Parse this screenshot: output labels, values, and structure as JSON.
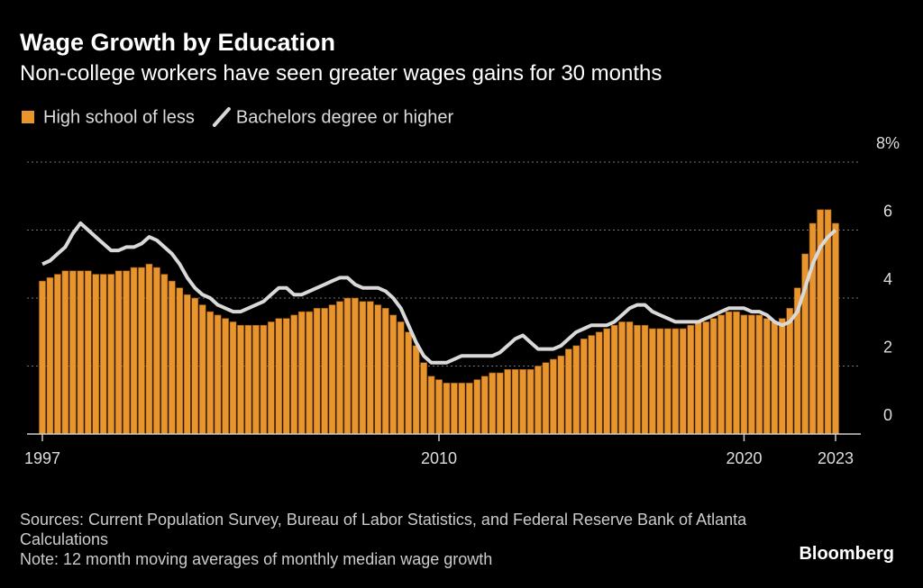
{
  "chart_data": {
    "type": "bar_line",
    "title": "Wage Growth by Education",
    "subtitle": "Non-college workers have seen greater wages gains for 30 months",
    "source": "Sources: Current Population Survey, Bureau of Labor Statistics, and Federal Reserve Bank of Atlanta Calculations",
    "note": "Note: 12 month moving averages of monthly median wage growth",
    "brand": "Bloomberg",
    "x": [
      1997,
      1997.25,
      1997.5,
      1997.75,
      1998,
      1998.25,
      1998.5,
      1998.75,
      1999,
      1999.25,
      1999.5,
      1999.75,
      2000,
      2000.25,
      2000.5,
      2000.75,
      2001,
      2001.25,
      2001.5,
      2001.75,
      2002,
      2002.25,
      2002.5,
      2002.75,
      2003,
      2003.25,
      2003.5,
      2003.75,
      2004,
      2004.25,
      2004.5,
      2004.75,
      2005,
      2005.25,
      2005.5,
      2005.75,
      2006,
      2006.25,
      2006.5,
      2006.75,
      2007,
      2007.25,
      2007.5,
      2007.75,
      2008,
      2008.25,
      2008.5,
      2008.75,
      2009,
      2009.25,
      2009.5,
      2009.75,
      2010,
      2010.25,
      2010.5,
      2010.75,
      2011,
      2011.25,
      2011.5,
      2011.75,
      2012,
      2012.25,
      2012.5,
      2012.75,
      2013,
      2013.25,
      2013.5,
      2013.75,
      2014,
      2014.25,
      2014.5,
      2014.75,
      2015,
      2015.25,
      2015.5,
      2015.75,
      2016,
      2016.25,
      2016.5,
      2016.75,
      2017,
      2017.25,
      2017.5,
      2017.75,
      2018,
      2018.25,
      2018.5,
      2018.75,
      2019,
      2019.25,
      2019.5,
      2019.75,
      2020,
      2020.25,
      2020.5,
      2020.75,
      2021,
      2021.25,
      2021.5,
      2021.75,
      2022,
      2022.25,
      2022.5,
      2022.75,
      2023
    ],
    "series": [
      {
        "name": "High school of less",
        "color": "#e8952e",
        "kind": "bar",
        "values": [
          4.5,
          4.6,
          4.7,
          4.8,
          4.8,
          4.8,
          4.8,
          4.7,
          4.7,
          4.7,
          4.8,
          4.8,
          4.9,
          4.9,
          5.0,
          4.9,
          4.7,
          4.5,
          4.3,
          4.1,
          4.0,
          3.8,
          3.6,
          3.5,
          3.4,
          3.3,
          3.2,
          3.2,
          3.2,
          3.2,
          3.3,
          3.4,
          3.4,
          3.5,
          3.6,
          3.6,
          3.7,
          3.7,
          3.8,
          3.9,
          4.0,
          4.0,
          3.9,
          3.9,
          3.8,
          3.7,
          3.5,
          3.3,
          3.0,
          2.6,
          2.1,
          1.7,
          1.6,
          1.5,
          1.5,
          1.5,
          1.5,
          1.6,
          1.7,
          1.8,
          1.8,
          1.9,
          1.9,
          1.9,
          1.9,
          2.0,
          2.1,
          2.2,
          2.3,
          2.5,
          2.6,
          2.8,
          2.9,
          3.0,
          3.1,
          3.2,
          3.3,
          3.3,
          3.2,
          3.2,
          3.1,
          3.1,
          3.1,
          3.1,
          3.1,
          3.2,
          3.3,
          3.3,
          3.4,
          3.5,
          3.6,
          3.6,
          3.5,
          3.5,
          3.5,
          3.4,
          3.3,
          3.4,
          3.7,
          4.3,
          5.3,
          6.2,
          6.6,
          6.6,
          6.2
        ]
      },
      {
        "name": "Bachelors degree or higher",
        "color": "#d9d9d9",
        "kind": "line",
        "values": [
          5.0,
          5.1,
          5.3,
          5.5,
          5.9,
          6.2,
          6.0,
          5.8,
          5.6,
          5.4,
          5.4,
          5.5,
          5.5,
          5.6,
          5.8,
          5.7,
          5.5,
          5.3,
          5.0,
          4.6,
          4.3,
          4.1,
          4.0,
          3.8,
          3.7,
          3.6,
          3.6,
          3.7,
          3.8,
          3.9,
          4.1,
          4.3,
          4.3,
          4.1,
          4.1,
          4.2,
          4.3,
          4.4,
          4.5,
          4.6,
          4.6,
          4.4,
          4.3,
          4.3,
          4.3,
          4.2,
          4.0,
          3.7,
          3.2,
          2.7,
          2.3,
          2.1,
          2.1,
          2.1,
          2.2,
          2.3,
          2.3,
          2.3,
          2.3,
          2.3,
          2.4,
          2.6,
          2.8,
          2.9,
          2.7,
          2.5,
          2.5,
          2.5,
          2.6,
          2.8,
          3.0,
          3.1,
          3.2,
          3.2,
          3.2,
          3.3,
          3.5,
          3.7,
          3.8,
          3.8,
          3.6,
          3.5,
          3.4,
          3.3,
          3.3,
          3.3,
          3.3,
          3.4,
          3.5,
          3.6,
          3.7,
          3.7,
          3.7,
          3.6,
          3.6,
          3.5,
          3.3,
          3.2,
          3.3,
          3.6,
          4.3,
          5.0,
          5.5,
          5.8,
          6.0
        ]
      }
    ],
    "xlim": [
      1997,
      2023
    ],
    "xticks": [
      1997,
      2010,
      2020,
      2023
    ],
    "ylim": [
      0,
      8
    ],
    "yticks": [
      0,
      2,
      4,
      6,
      {
        "value": 8,
        "label": "8%"
      }
    ],
    "grid": true
  }
}
